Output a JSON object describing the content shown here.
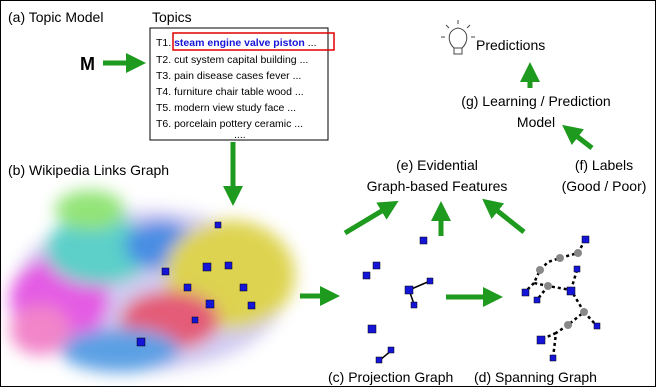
{
  "topic_model": {
    "label": "(a) Topic Model",
    "matrix": "M",
    "topics_title": "Topics",
    "topics": [
      {
        "id": "T1.",
        "highlight": "steam engine valve piston",
        "rest": "..."
      },
      "T2. cut system capital building ...",
      "T3. pain disease cases fever ...",
      "T4. furniture chair table wood ...",
      "T5. modern view study face ...",
      "T6. porcelain pottery ceramic ...",
      "...."
    ]
  },
  "wikipedia_graph": {
    "label": "(b) Wikipedia Links Graph"
  },
  "projection_graph": {
    "label": "(c) Projection Graph"
  },
  "spanning_graph": {
    "label": "(d) Spanning Graph"
  },
  "features": {
    "lines": [
      "(e) Evidential",
      "Graph-based Features"
    ]
  },
  "labels": {
    "lines": [
      "(f) Labels",
      "(Good / Poor)"
    ]
  },
  "model": {
    "lines": [
      "(g) Learning / Prediction",
      "Model"
    ]
  },
  "predictions": {
    "label": "Predictions"
  }
}
